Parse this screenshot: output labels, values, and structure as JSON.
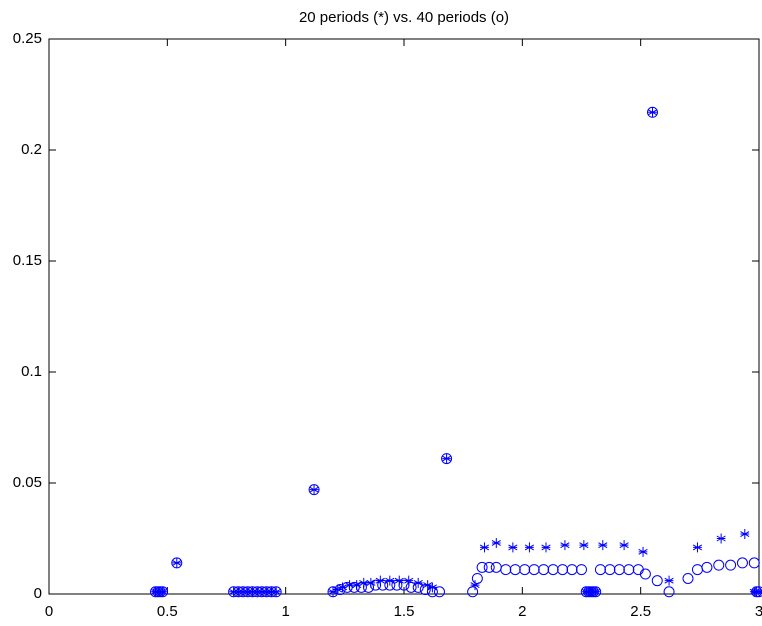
{
  "chart_data": {
    "type": "scatter",
    "title": "20 periods (*) vs. 40 periods (o)",
    "xlim": [
      0,
      3
    ],
    "xticks": [
      0,
      0.5,
      1,
      1.5,
      2,
      2.5,
      3
    ],
    "ylim": [
      0,
      0.25
    ],
    "yticks": [
      0,
      0.05,
      0.1,
      0.15,
      0.2,
      0.25
    ],
    "grid": false,
    "series": [
      {
        "marker": "star",
        "color": "#0000ff",
        "x": [
          0.45,
          0.46,
          0.47,
          0.48,
          0.54,
          0.78,
          0.8,
          0.82,
          0.84,
          0.86,
          0.88,
          0.9,
          0.92,
          0.94,
          0.96,
          1.12,
          1.2,
          1.22,
          1.24,
          1.27,
          1.3,
          1.33,
          1.36,
          1.4,
          1.44,
          1.48,
          1.52,
          1.56,
          1.6,
          1.62,
          1.68,
          1.8,
          1.84,
          1.89,
          1.96,
          2.03,
          2.1,
          2.18,
          2.26,
          2.27,
          2.28,
          2.29,
          2.3,
          2.31,
          2.34,
          2.43,
          2.51,
          2.55,
          2.62,
          2.74,
          2.84,
          2.94,
          2.98,
          2.99,
          3.0
        ],
        "values": [
          0.001,
          0.001,
          0.001,
          0.001,
          0.014,
          0.001,
          0.001,
          0.001,
          0.001,
          0.001,
          0.001,
          0.001,
          0.001,
          0.001,
          0.001,
          0.047,
          0.001,
          0.002,
          0.003,
          0.004,
          0.004,
          0.005,
          0.005,
          0.006,
          0.006,
          0.006,
          0.006,
          0.005,
          0.004,
          0.003,
          0.061,
          0.004,
          0.021,
          0.023,
          0.021,
          0.021,
          0.021,
          0.022,
          0.022,
          0.001,
          0.001,
          0.001,
          0.001,
          0.001,
          0.022,
          0.022,
          0.019,
          0.217,
          0.006,
          0.021,
          0.025,
          0.027,
          0.001,
          0.001,
          0.001
        ]
      },
      {
        "marker": "circle",
        "color": "#0000ff",
        "x": [
          0.45,
          0.46,
          0.47,
          0.48,
          0.54,
          0.78,
          0.8,
          0.82,
          0.84,
          0.86,
          0.88,
          0.9,
          0.92,
          0.94,
          0.96,
          1.12,
          1.2,
          1.23,
          1.26,
          1.29,
          1.32,
          1.35,
          1.38,
          1.41,
          1.44,
          1.47,
          1.5,
          1.53,
          1.56,
          1.59,
          1.62,
          1.65,
          1.68,
          1.79,
          1.81,
          1.83,
          1.86,
          1.89,
          1.93,
          1.97,
          2.01,
          2.05,
          2.09,
          2.13,
          2.17,
          2.21,
          2.25,
          2.27,
          2.28,
          2.29,
          2.3,
          2.31,
          2.33,
          2.37,
          2.41,
          2.45,
          2.49,
          2.52,
          2.55,
          2.57,
          2.62,
          2.7,
          2.74,
          2.78,
          2.83,
          2.88,
          2.93,
          2.98,
          2.99,
          3.0
        ],
        "values": [
          0.001,
          0.001,
          0.001,
          0.001,
          0.014,
          0.001,
          0.001,
          0.001,
          0.001,
          0.001,
          0.001,
          0.001,
          0.001,
          0.001,
          0.001,
          0.047,
          0.001,
          0.002,
          0.003,
          0.003,
          0.003,
          0.003,
          0.004,
          0.004,
          0.004,
          0.004,
          0.004,
          0.003,
          0.003,
          0.002,
          0.001,
          0.001,
          0.061,
          0.001,
          0.007,
          0.012,
          0.012,
          0.012,
          0.011,
          0.011,
          0.011,
          0.011,
          0.011,
          0.011,
          0.011,
          0.011,
          0.011,
          0.001,
          0.001,
          0.001,
          0.001,
          0.001,
          0.011,
          0.011,
          0.011,
          0.011,
          0.011,
          0.009,
          0.217,
          0.006,
          0.001,
          0.007,
          0.011,
          0.012,
          0.013,
          0.013,
          0.014,
          0.014,
          0.001,
          0.001
        ]
      }
    ]
  }
}
